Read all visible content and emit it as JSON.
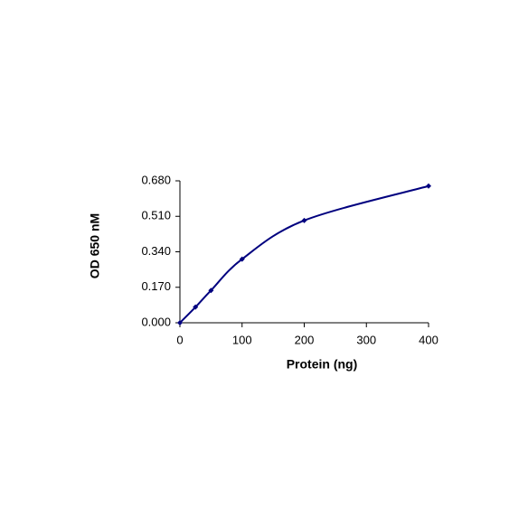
{
  "chart_data": {
    "type": "scatter",
    "smooth": true,
    "x_label": "Protein (ng)",
    "y_label": "OD 650 nM",
    "series": [
      {
        "color": "#00007f",
        "x": [
          0,
          25,
          50,
          100,
          200,
          400
        ],
        "values": [
          0,
          0.075,
          0.155,
          0.305,
          0.49,
          0.655
        ]
      }
    ],
    "xlim": [
      0,
      400
    ],
    "xticks": [
      0,
      100,
      200,
      300,
      400
    ],
    "ylim": [
      0,
      0.68
    ],
    "yticks": [
      {
        "value": 0,
        "label": "0.000"
      },
      {
        "value": 0.17,
        "label": "0.170"
      },
      {
        "value": 0.34,
        "label": "0.340"
      },
      {
        "value": 0.51,
        "label": "0.510"
      },
      {
        "value": 0.68,
        "label": "0.680"
      }
    ],
    "grid": false
  }
}
